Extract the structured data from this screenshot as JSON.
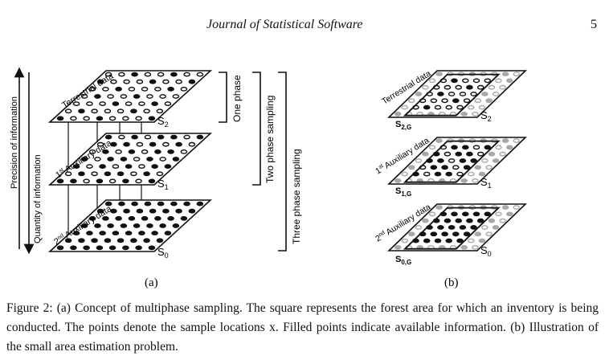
{
  "header": {
    "journal_title": "Journal of Statistical Software",
    "page_number": "5"
  },
  "figure": {
    "panel_a": {
      "sub_label": "(a)",
      "arrow_precision": "Precision of information",
      "arrow_quantity": "Quantity of information",
      "layers": [
        {
          "name": "Terrestrial data",
          "set": "S",
          "set_sub": "2"
        },
        {
          "name": "Auxiliary data",
          "prefix": "1",
          "prefix_sup": "st",
          "set": "S",
          "set_sub": "1"
        },
        {
          "name": "Auxiliary data",
          "prefix": "2",
          "prefix_sup": "nd",
          "set": "S",
          "set_sub": "0"
        }
      ],
      "brackets": [
        "One phase",
        "Two phase sampling",
        "Three phase sampling"
      ]
    },
    "panel_b": {
      "sub_label": "(b)",
      "layers": [
        {
          "name": "Terrestrial data",
          "set": "S",
          "set_sub": "2",
          "group_set": "S",
          "group_sub": "2,G"
        },
        {
          "name": "Auxiliary data",
          "prefix": "1",
          "prefix_sup": "st",
          "set": "S",
          "set_sub": "1",
          "group_set": "S",
          "group_sub": "1,G"
        },
        {
          "name": "Auxiliary data",
          "prefix": "2",
          "prefix_sup": "nd",
          "set": "S",
          "set_sub": "0",
          "group_set": "S",
          "group_sub": "0,G"
        }
      ]
    }
  },
  "caption": {
    "label": "Figure 2:",
    "text": "(a) Concept of multiphase sampling. The square represents the forest area for which an inventory is being conducted. The points denote the sample locations x. Filled points indicate available information. (b) Illustration of the small area estimation problem."
  },
  "colors": {
    "filled_point": "#111111",
    "open_point": "#111111",
    "grey_point": "#a8a8a8"
  }
}
